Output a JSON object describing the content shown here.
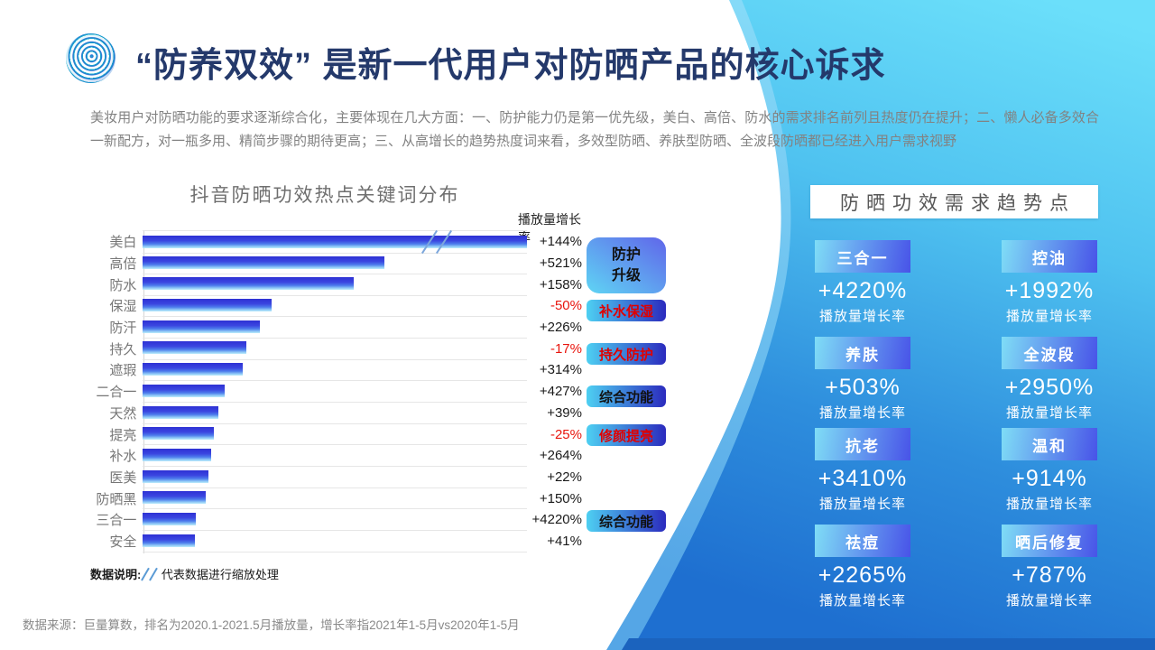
{
  "slide": {
    "title": "“防养双效” 是新一代用户对防晒产品的核心诉求",
    "body": "美妆用户对防晒功能的要求逐渐综合化，主要体现在几大方面：一、防护能力仍是第一优先级，美白、高倍、防水的需求排名前列且热度仍在提升；二、懒人必备多效合一新配方，对一瓶多用、精简步骤的期待更高；三、从高增长的趋势热度词来看，多效型防晒、养肤型防晒、全波段防晒都已经进入用户需求视野",
    "source": "数据来源：巨量算数，排名为2020.1-2021.5月播放量，增长率指2021年1-5月vs2020年1-5月"
  },
  "chart_data": {
    "type": "bar",
    "orientation": "horizontal",
    "title": "抖音防晒功效热点关键词分布",
    "value_header": "播放量增长率",
    "categories": [
      "美白",
      "高倍",
      "防水",
      "保湿",
      "防汗",
      "持久",
      "遮瑕",
      "二合一",
      "天然",
      "提亮",
      "补水",
      "医美",
      "防晒黑",
      "三合一",
      "安全"
    ],
    "bar_lengths_rel": [
      100,
      63,
      55,
      33.5,
      30.5,
      27,
      26,
      21.3,
      19.6,
      18.5,
      17.8,
      17,
      16.4,
      13.8,
      13.5
    ],
    "growth_rates": [
      "+144%",
      "+521%",
      "+158%",
      "-50%",
      "+226%",
      "-17%",
      "+314%",
      "+427%",
      "+39%",
      "-25%",
      "+264%",
      "+22%",
      "+150%",
      "+4220%",
      "+41%"
    ],
    "axis_break": {
      "category": "美白",
      "symbol": "//"
    },
    "groups": [
      {
        "label": "防护\n升级",
        "text_color": "black"
      },
      {
        "label": "补水保湿",
        "text_color": "red"
      },
      {
        "label": "持久防护",
        "text_color": "red"
      },
      {
        "label": "综合功能",
        "text_color": "black"
      },
      {
        "label": "修颜提亮",
        "text_color": "red"
      },
      {
        "label": "综合功能",
        "text_color": "black"
      }
    ],
    "note_prefix": "数据说明:",
    "note_suffix": "代表数据进行缩放处理",
    "legend_position": "none",
    "grid": "row-separators"
  },
  "trend_panel": {
    "title": "防晒功效需求趋势点",
    "metric_label": "播放量增长率",
    "items": [
      {
        "keyword": "三合一",
        "growth": "+4220%"
      },
      {
        "keyword": "控油",
        "growth": "+1992%"
      },
      {
        "keyword": "养肤",
        "growth": "+503%"
      },
      {
        "keyword": "全波段",
        "growth": "+2950%"
      },
      {
        "keyword": "抗老",
        "growth": "+3410%"
      },
      {
        "keyword": "温和",
        "growth": "+914%"
      },
      {
        "keyword": "祛痘",
        "growth": "+2265%"
      },
      {
        "keyword": "晒后修复",
        "growth": "+787%"
      }
    ]
  },
  "colors": {
    "title_navy": "#24396B",
    "background_cyan": "#6BDFFA",
    "background_blue": "#1E6FD0",
    "bottom_strip_blue": "#1B63BE",
    "bar_gradient_top": "#2E31D4",
    "bar_gradient_bottom": "#BDEDFC",
    "badge_gradient_start": "#7FDDF6",
    "badge_gradient_end": "#4853E8",
    "left_badge_dark_end": "#2B2BBE",
    "negative_red": "#E8150D",
    "badge_red_text": "#E00000",
    "break_mark_blue": "#7CA6DC"
  }
}
